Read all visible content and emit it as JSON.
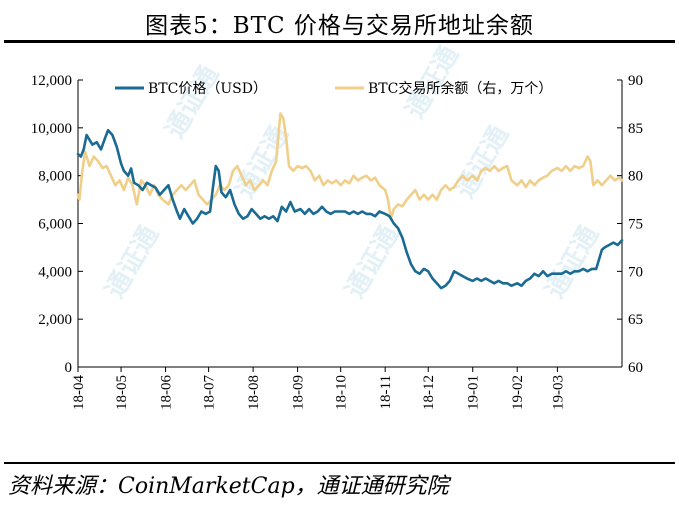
{
  "title": "图表5：BTC 价格与交易所地址余额",
  "source": "资料来源：CoinMarketCap，通证通研究院",
  "colors": {
    "price": "#1a6b93",
    "balance": "#f0cf8a",
    "watermark": "#e3f1f7"
  },
  "watermark_text": "通证通",
  "chart_data": {
    "type": "line",
    "x_tick_labels": [
      "18-04",
      "18-05",
      "18-06",
      "18-07",
      "18-08",
      "18-09",
      "18-10",
      "18-11",
      "18-12",
      "19-01",
      "19-02",
      "19-03"
    ],
    "y_left": {
      "range": [
        0,
        12000
      ],
      "ticks": [
        "0",
        "2,000",
        "4,000",
        "6,000",
        "8,000",
        "10,000",
        "12,000"
      ]
    },
    "y_right": {
      "range": [
        60,
        90
      ],
      "ticks": [
        "60",
        "65",
        "70",
        "75",
        "80",
        "85",
        "90"
      ]
    },
    "legend_placement": "top",
    "grid": false,
    "series": [
      {
        "name": "BTC价格（USD）",
        "axis": "left",
        "values": [
          [
            "18-04-01",
            8900
          ],
          [
            "18-04-03",
            8800
          ],
          [
            "18-04-05",
            9100
          ],
          [
            "18-04-07",
            9700
          ],
          [
            "18-04-09",
            9500
          ],
          [
            "18-04-11",
            9300
          ],
          [
            "18-04-14",
            9400
          ],
          [
            "18-04-17",
            9100
          ],
          [
            "18-04-20",
            9600
          ],
          [
            "18-04-22",
            9900
          ],
          [
            "18-04-25",
            9700
          ],
          [
            "18-04-28",
            9200
          ],
          [
            "18-05-01",
            8500
          ],
          [
            "18-05-03",
            8200
          ],
          [
            "18-05-06",
            8000
          ],
          [
            "18-05-08",
            8300
          ],
          [
            "18-05-10",
            7700
          ],
          [
            "18-05-13",
            7600
          ],
          [
            "18-05-16",
            7400
          ],
          [
            "18-05-19",
            7700
          ],
          [
            "18-05-22",
            7600
          ],
          [
            "18-05-25",
            7500
          ],
          [
            "18-05-28",
            7200
          ],
          [
            "18-05-31",
            7400
          ],
          [
            "18-06-03",
            7600
          ],
          [
            "18-06-06",
            7000
          ],
          [
            "18-06-09",
            6500
          ],
          [
            "18-06-11",
            6200
          ],
          [
            "18-06-14",
            6600
          ],
          [
            "18-06-17",
            6300
          ],
          [
            "18-06-20",
            6000
          ],
          [
            "18-06-23",
            6200
          ],
          [
            "18-06-26",
            6500
          ],
          [
            "18-06-29",
            6400
          ],
          [
            "18-07-02",
            6500
          ],
          [
            "18-07-04",
            7500
          ],
          [
            "18-07-06",
            8400
          ],
          [
            "18-07-08",
            8200
          ],
          [
            "18-07-10",
            7300
          ],
          [
            "18-07-13",
            7100
          ],
          [
            "18-07-16",
            7400
          ],
          [
            "18-07-19",
            6800
          ],
          [
            "18-07-22",
            6400
          ],
          [
            "18-07-25",
            6200
          ],
          [
            "18-07-28",
            6300
          ],
          [
            "18-07-31",
            6600
          ],
          [
            "18-08-03",
            6400
          ],
          [
            "18-08-06",
            6200
          ],
          [
            "18-08-09",
            6300
          ],
          [
            "18-08-12",
            6200
          ],
          [
            "18-08-15",
            6300
          ],
          [
            "18-08-18",
            6100
          ],
          [
            "18-08-21",
            6700
          ],
          [
            "18-08-24",
            6500
          ],
          [
            "18-08-27",
            6900
          ],
          [
            "18-08-30",
            6500
          ],
          [
            "18-09-03",
            6600
          ],
          [
            "18-09-06",
            6400
          ],
          [
            "18-09-09",
            6600
          ],
          [
            "18-09-12",
            6400
          ],
          [
            "18-09-15",
            6500
          ],
          [
            "18-09-18",
            6700
          ],
          [
            "18-09-21",
            6500
          ],
          [
            "18-09-24",
            6400
          ],
          [
            "18-09-27",
            6500
          ],
          [
            "18-10-01",
            6500
          ],
          [
            "18-10-04",
            6500
          ],
          [
            "18-10-07",
            6400
          ],
          [
            "18-10-10",
            6500
          ],
          [
            "18-10-13",
            6400
          ],
          [
            "18-10-16",
            6500
          ],
          [
            "18-10-19",
            6400
          ],
          [
            "18-10-22",
            6400
          ],
          [
            "18-10-25",
            6300
          ],
          [
            "18-10-28",
            6500
          ],
          [
            "18-11-01",
            6400
          ],
          [
            "18-11-04",
            6300
          ],
          [
            "18-11-07",
            6000
          ],
          [
            "18-11-10",
            5800
          ],
          [
            "18-11-13",
            5400
          ],
          [
            "18-11-16",
            4800
          ],
          [
            "18-11-19",
            4300
          ],
          [
            "18-11-22",
            4000
          ],
          [
            "18-11-25",
            3900
          ],
          [
            "18-11-28",
            4100
          ],
          [
            "18-12-01",
            4000
          ],
          [
            "18-12-04",
            3700
          ],
          [
            "18-12-07",
            3500
          ],
          [
            "18-12-10",
            3300
          ],
          [
            "18-12-13",
            3400
          ],
          [
            "18-12-16",
            3600
          ],
          [
            "18-12-19",
            4000
          ],
          [
            "18-12-22",
            3900
          ],
          [
            "18-12-25",
            3800
          ],
          [
            "18-12-28",
            3700
          ],
          [
            "19-01-01",
            3600
          ],
          [
            "19-01-04",
            3700
          ],
          [
            "19-01-07",
            3600
          ],
          [
            "19-01-10",
            3700
          ],
          [
            "19-01-13",
            3600
          ],
          [
            "19-01-16",
            3500
          ],
          [
            "19-01-19",
            3600
          ],
          [
            "19-01-22",
            3500
          ],
          [
            "19-01-25",
            3500
          ],
          [
            "19-01-28",
            3400
          ],
          [
            "19-02-01",
            3500
          ],
          [
            "19-02-04",
            3400
          ],
          [
            "19-02-07",
            3600
          ],
          [
            "19-02-10",
            3700
          ],
          [
            "19-02-13",
            3900
          ],
          [
            "19-02-16",
            3800
          ],
          [
            "19-02-19",
            4000
          ],
          [
            "19-02-22",
            3800
          ],
          [
            "19-02-25",
            3900
          ],
          [
            "19-03-01",
            3900
          ],
          [
            "19-03-04",
            3900
          ],
          [
            "19-03-07",
            4000
          ],
          [
            "19-03-10",
            3900
          ],
          [
            "19-03-13",
            4000
          ],
          [
            "19-03-16",
            4000
          ],
          [
            "19-03-19",
            4100
          ],
          [
            "19-03-22",
            4000
          ],
          [
            "19-03-25",
            4100
          ],
          [
            "19-03-28",
            4100
          ],
          [
            "19-04-01",
            4900
          ],
          [
            "19-04-03",
            5000
          ],
          [
            "19-04-06",
            5100
          ],
          [
            "19-04-09",
            5200
          ],
          [
            "19-04-12",
            5100
          ],
          [
            "19-04-15",
            5300
          ]
        ]
      },
      {
        "name": "BTC交易所余额（右，万个）",
        "axis": "right",
        "values": [
          [
            "18-04-01",
            78.0
          ],
          [
            "18-04-02",
            77.5
          ],
          [
            "18-04-04",
            80.5
          ],
          [
            "18-04-06",
            82.5
          ],
          [
            "18-04-09",
            81.0
          ],
          [
            "18-04-12",
            82.0
          ],
          [
            "18-04-15",
            81.5
          ],
          [
            "18-04-18",
            80.8
          ],
          [
            "18-04-21",
            81.0
          ],
          [
            "18-04-24",
            80.0
          ],
          [
            "18-04-27",
            79.0
          ],
          [
            "18-04-30",
            79.5
          ],
          [
            "18-05-03",
            78.5
          ],
          [
            "18-05-06",
            79.8
          ],
          [
            "18-05-09",
            79.0
          ],
          [
            "18-05-12",
            77.0
          ],
          [
            "18-05-15",
            79.5
          ],
          [
            "18-05-18",
            79.0
          ],
          [
            "18-05-21",
            78.0
          ],
          [
            "18-05-24",
            79.0
          ],
          [
            "18-05-27",
            78.0
          ],
          [
            "18-05-30",
            77.5
          ],
          [
            "18-06-03",
            77.0
          ],
          [
            "18-06-06",
            78.0
          ],
          [
            "18-06-09",
            78.5
          ],
          [
            "18-06-12",
            79.0
          ],
          [
            "18-06-15",
            78.5
          ],
          [
            "18-06-18",
            79.0
          ],
          [
            "18-06-21",
            79.5
          ],
          [
            "18-06-24",
            78.0
          ],
          [
            "18-06-27",
            77.5
          ],
          [
            "18-06-30",
            77.0
          ],
          [
            "18-07-03",
            77.5
          ],
          [
            "18-07-06",
            78.0
          ],
          [
            "18-07-09",
            79.0
          ],
          [
            "18-07-12",
            78.5
          ],
          [
            "18-07-15",
            79.0
          ],
          [
            "18-07-18",
            80.5
          ],
          [
            "18-07-21",
            81.0
          ],
          [
            "18-07-24",
            80.0
          ],
          [
            "18-07-27",
            79.0
          ],
          [
            "18-07-30",
            79.5
          ],
          [
            "18-08-02",
            78.5
          ],
          [
            "18-08-05",
            79.0
          ],
          [
            "18-08-08",
            79.5
          ],
          [
            "18-08-11",
            79.0
          ],
          [
            "18-08-14",
            80.5
          ],
          [
            "18-08-17",
            81.5
          ],
          [
            "18-08-20",
            86.5
          ],
          [
            "18-08-22",
            86.0
          ],
          [
            "18-08-24",
            84.0
          ],
          [
            "18-08-26",
            81.0
          ],
          [
            "18-08-29",
            80.5
          ],
          [
            "18-09-01",
            81.0
          ],
          [
            "18-09-04",
            80.8
          ],
          [
            "18-09-07",
            81.0
          ],
          [
            "18-09-10",
            80.5
          ],
          [
            "18-09-13",
            79.5
          ],
          [
            "18-09-16",
            80.0
          ],
          [
            "18-09-19",
            79.0
          ],
          [
            "18-09-22",
            79.5
          ],
          [
            "18-09-25",
            79.2
          ],
          [
            "18-09-28",
            79.5
          ],
          [
            "18-10-01",
            79.0
          ],
          [
            "18-10-04",
            79.5
          ],
          [
            "18-10-07",
            79.2
          ],
          [
            "18-10-10",
            80.0
          ],
          [
            "18-10-13",
            79.5
          ],
          [
            "18-10-16",
            79.8
          ],
          [
            "18-10-19",
            80.0
          ],
          [
            "18-10-22",
            79.5
          ],
          [
            "18-10-25",
            79.8
          ],
          [
            "18-10-28",
            79.0
          ],
          [
            "18-11-01",
            78.5
          ],
          [
            "18-11-03",
            77.5
          ],
          [
            "18-11-05",
            75.5
          ],
          [
            "18-11-07",
            76.5
          ],
          [
            "18-11-10",
            77.0
          ],
          [
            "18-11-13",
            76.8
          ],
          [
            "18-11-16",
            77.5
          ],
          [
            "18-11-19",
            78.0
          ],
          [
            "18-11-22",
            78.5
          ],
          [
            "18-11-25",
            77.5
          ],
          [
            "18-11-28",
            78.0
          ],
          [
            "18-12-01",
            77.5
          ],
          [
            "18-12-04",
            78.0
          ],
          [
            "18-12-07",
            77.5
          ],
          [
            "18-12-10",
            78.5
          ],
          [
            "18-12-13",
            79.0
          ],
          [
            "18-12-16",
            78.5
          ],
          [
            "18-12-19",
            78.8
          ],
          [
            "18-12-22",
            79.5
          ],
          [
            "18-12-25",
            80.0
          ],
          [
            "18-12-28",
            79.5
          ],
          [
            "19-01-01",
            80.0
          ],
          [
            "19-01-04",
            79.5
          ],
          [
            "19-01-07",
            80.5
          ],
          [
            "19-01-10",
            80.8
          ],
          [
            "19-01-13",
            80.5
          ],
          [
            "19-01-16",
            81.0
          ],
          [
            "19-01-19",
            80.5
          ],
          [
            "19-01-22",
            80.8
          ],
          [
            "19-01-25",
            81.0
          ],
          [
            "19-01-28",
            79.5
          ],
          [
            "19-02-01",
            79.0
          ],
          [
            "19-02-04",
            79.5
          ],
          [
            "19-02-07",
            78.8
          ],
          [
            "19-02-10",
            79.5
          ],
          [
            "19-02-13",
            79.0
          ],
          [
            "19-02-16",
            79.5
          ],
          [
            "19-02-19",
            79.8
          ],
          [
            "19-02-22",
            80.0
          ],
          [
            "19-02-25",
            80.5
          ],
          [
            "19-03-01",
            80.8
          ],
          [
            "19-03-04",
            80.5
          ],
          [
            "19-03-07",
            81.0
          ],
          [
            "19-03-10",
            80.5
          ],
          [
            "19-03-13",
            81.0
          ],
          [
            "19-03-16",
            80.8
          ],
          [
            "19-03-19",
            81.0
          ],
          [
            "19-03-22",
            82.0
          ],
          [
            "19-03-24",
            81.5
          ],
          [
            "19-03-26",
            79.0
          ],
          [
            "19-03-29",
            79.5
          ],
          [
            "19-04-01",
            79.0
          ],
          [
            "19-04-04",
            79.5
          ],
          [
            "19-04-07",
            80.0
          ],
          [
            "19-04-10",
            79.5
          ],
          [
            "19-04-13",
            79.8
          ],
          [
            "19-04-15",
            79.5
          ]
        ]
      }
    ]
  }
}
